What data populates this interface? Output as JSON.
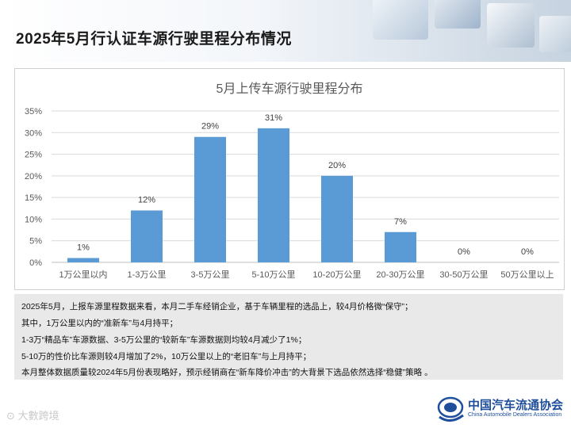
{
  "page": {
    "title": "2025年5月行认证车源行驶里程分布情况"
  },
  "chart_data": {
    "type": "bar",
    "title": "5月上传车源行驶里程分布",
    "xlabel": "",
    "ylabel": "",
    "categories": [
      "1万公里以内",
      "1-3万公里",
      "3-5万公里",
      "5-10万公里",
      "10-20万公里",
      "20-30万公里",
      "30-50万公里",
      "50万公里以上"
    ],
    "values": [
      1,
      12,
      29,
      31,
      20,
      7,
      0,
      0
    ],
    "value_labels": [
      "1%",
      "12%",
      "29%",
      "31%",
      "20%",
      "7%",
      "0%",
      "0%"
    ],
    "ylim": [
      0,
      35
    ],
    "yticks": [
      0,
      5,
      10,
      15,
      20,
      25,
      30,
      35
    ],
    "ytick_labels": [
      "0%",
      "5%",
      "10%",
      "15%",
      "20%",
      "25%",
      "30%",
      "35%"
    ],
    "grid": true,
    "bar_color": "#5b9bd5"
  },
  "notes": {
    "lines": [
      "2025年5月，上报车源里程数据来看，本月二手车经销企业，基于车辆里程的选品上，较4月价格微“保守”；",
      "其中，1万公里以内的“准新车”与4月持平；",
      "1-3万“精品车”车源数据、3-5万公里的“较新车”车源数据则均较4月减少了1%；",
      "5-10万的性价比车源则较4月增加了2%，10万公里以上的“老旧车”与上月持平；",
      "本月整体数据质量较2024年5月份表现略好，预示经销商在“新车降价冲击”的大背景下选品依然选择“稳健”策略 。"
    ]
  },
  "footer": {
    "watermark": "⊙ 大數跨境"
  },
  "logo": {
    "name_cn": "中国汽车流通协会",
    "name_en": "China Automobile Dealers Association"
  }
}
